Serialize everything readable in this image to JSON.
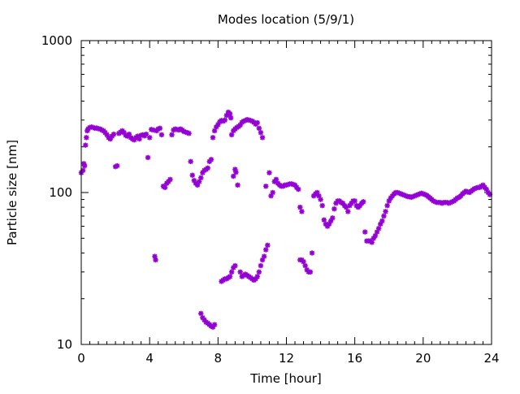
{
  "chart_data": {
    "type": "scatter",
    "title": "Modes location (5/9/1)",
    "xlabel": "Time [hour]",
    "ylabel": "Particle size [nm]",
    "xlim": [
      0,
      24
    ],
    "ylim": [
      10,
      1000
    ],
    "y_scale": "log",
    "x_ticks": [
      0,
      4,
      8,
      12,
      16,
      20,
      24
    ],
    "x_tick_labels": [
      "0",
      "4",
      "8",
      "12",
      "16",
      "20",
      "24"
    ],
    "y_ticks": [
      10,
      100,
      1000
    ],
    "y_tick_labels": [
      "10",
      "100",
      "1000"
    ],
    "grid": false,
    "legend": "none",
    "marker_color": "#9400d3",
    "series": [
      {
        "points": [
          [
            0.0,
            135
          ],
          [
            0.1,
            140
          ],
          [
            0.15,
            155
          ],
          [
            0.2,
            150
          ],
          [
            0.25,
            205
          ],
          [
            0.3,
            230
          ],
          [
            0.35,
            255
          ],
          [
            0.4,
            262
          ],
          [
            0.5,
            268
          ],
          [
            0.6,
            270
          ],
          [
            0.7,
            268
          ],
          [
            0.8,
            265
          ],
          [
            0.9,
            266
          ],
          [
            1.0,
            263
          ],
          [
            1.1,
            262
          ],
          [
            1.2,
            258
          ],
          [
            1.3,
            255
          ],
          [
            1.4,
            248
          ],
          [
            1.5,
            240
          ],
          [
            1.6,
            230
          ],
          [
            1.7,
            225
          ],
          [
            1.8,
            235
          ],
          [
            1.9,
            242
          ],
          [
            2.0,
            148
          ],
          [
            2.1,
            150
          ],
          [
            2.2,
            245
          ],
          [
            2.3,
            250
          ],
          [
            2.4,
            255
          ],
          [
            2.5,
            248
          ],
          [
            2.6,
            238
          ],
          [
            2.7,
            235
          ],
          [
            2.8,
            242
          ],
          [
            2.9,
            230
          ],
          [
            3.0,
            225
          ],
          [
            3.1,
            222
          ],
          [
            3.2,
            230
          ],
          [
            3.3,
            235
          ],
          [
            3.4,
            225
          ],
          [
            3.5,
            238
          ],
          [
            3.6,
            240
          ],
          [
            3.7,
            236
          ],
          [
            3.8,
            242
          ],
          [
            3.9,
            170
          ],
          [
            4.0,
            230
          ],
          [
            4.1,
            260
          ],
          [
            4.2,
            258
          ],
          [
            4.3,
            38
          ],
          [
            4.35,
            36
          ],
          [
            4.4,
            255
          ],
          [
            4.5,
            262
          ],
          [
            4.6,
            265
          ],
          [
            4.7,
            240
          ],
          [
            4.8,
            110
          ],
          [
            4.9,
            108
          ],
          [
            5.0,
            115
          ],
          [
            5.1,
            118
          ],
          [
            5.2,
            122
          ],
          [
            5.3,
            240
          ],
          [
            5.4,
            258
          ],
          [
            5.5,
            262
          ],
          [
            5.6,
            260
          ],
          [
            5.7,
            258
          ],
          [
            5.8,
            262
          ],
          [
            5.9,
            258
          ],
          [
            6.0,
            252
          ],
          [
            6.1,
            250
          ],
          [
            6.2,
            248
          ],
          [
            6.3,
            245
          ],
          [
            6.4,
            160
          ],
          [
            6.5,
            130
          ],
          [
            6.6,
            120
          ],
          [
            6.7,
            115
          ],
          [
            6.8,
            112
          ],
          [
            6.9,
            118
          ],
          [
            7.0,
            125
          ],
          [
            7.1,
            135
          ],
          [
            7.2,
            140
          ],
          [
            7.3,
            142
          ],
          [
            7.4,
            145
          ],
          [
            7.5,
            160
          ],
          [
            7.6,
            165
          ],
          [
            7.0,
            16
          ],
          [
            7.1,
            15
          ],
          [
            7.2,
            14.5
          ],
          [
            7.3,
            14
          ],
          [
            7.4,
            13.8
          ],
          [
            7.5,
            13.5
          ],
          [
            7.6,
            13.2
          ],
          [
            7.7,
            13
          ],
          [
            7.8,
            13.5
          ],
          [
            7.7,
            230
          ],
          [
            7.8,
            255
          ],
          [
            7.9,
            270
          ],
          [
            8.0,
            280
          ],
          [
            8.1,
            292
          ],
          [
            8.2,
            298
          ],
          [
            8.3,
            295
          ],
          [
            8.4,
            300
          ],
          [
            8.5,
            322
          ],
          [
            8.6,
            338
          ],
          [
            8.7,
            330
          ],
          [
            8.75,
            310
          ],
          [
            8.8,
            240
          ],
          [
            8.9,
            255
          ],
          [
            9.0,
            262
          ],
          [
            9.1,
            268
          ],
          [
            9.2,
            272
          ],
          [
            9.3,
            278
          ],
          [
            9.4,
            290
          ],
          [
            9.5,
            295
          ],
          [
            9.6,
            298
          ],
          [
            9.7,
            302
          ],
          [
            9.8,
            300
          ],
          [
            9.9,
            298
          ],
          [
            10.0,
            295
          ],
          [
            10.1,
            290
          ],
          [
            10.2,
            282
          ],
          [
            10.3,
            288
          ],
          [
            10.4,
            265
          ],
          [
            10.5,
            248
          ],
          [
            10.6,
            230
          ],
          [
            8.9,
            128
          ],
          [
            9.0,
            142
          ],
          [
            9.05,
            136
          ],
          [
            9.15,
            112
          ],
          [
            8.2,
            26
          ],
          [
            8.3,
            26.5
          ],
          [
            8.4,
            27
          ],
          [
            8.5,
            27
          ],
          [
            8.6,
            27.5
          ],
          [
            8.7,
            28
          ],
          [
            8.8,
            30
          ],
          [
            8.9,
            32
          ],
          [
            9.0,
            33
          ],
          [
            9.3,
            30
          ],
          [
            9.4,
            28
          ],
          [
            9.5,
            28.5
          ],
          [
            9.6,
            29
          ],
          [
            9.7,
            28.5
          ],
          [
            9.8,
            28
          ],
          [
            9.9,
            27.5
          ],
          [
            10.0,
            27
          ],
          [
            10.1,
            26.5
          ],
          [
            10.2,
            27
          ],
          [
            10.3,
            28
          ],
          [
            10.4,
            30
          ],
          [
            10.5,
            33
          ],
          [
            10.6,
            36
          ],
          [
            10.7,
            38
          ],
          [
            10.8,
            42
          ],
          [
            10.9,
            45
          ],
          [
            10.8,
            110
          ],
          [
            11.0,
            135
          ],
          [
            11.1,
            95
          ],
          [
            11.2,
            100
          ],
          [
            11.3,
            118
          ],
          [
            11.4,
            122
          ],
          [
            11.5,
            115
          ],
          [
            11.6,
            112
          ],
          [
            11.7,
            110
          ],
          [
            11.8,
            110
          ],
          [
            11.9,
            112
          ],
          [
            12.0,
            112
          ],
          [
            12.1,
            113
          ],
          [
            12.2,
            114
          ],
          [
            12.3,
            114
          ],
          [
            12.4,
            113
          ],
          [
            12.5,
            112
          ],
          [
            12.6,
            108
          ],
          [
            12.7,
            105
          ],
          [
            12.8,
            80
          ],
          [
            12.9,
            75
          ],
          [
            12.8,
            36
          ],
          [
            12.9,
            36
          ],
          [
            13.0,
            35
          ],
          [
            13.1,
            33
          ],
          [
            13.2,
            31
          ],
          [
            13.3,
            30
          ],
          [
            13.4,
            30
          ],
          [
            13.5,
            40
          ],
          [
            13.6,
            95
          ],
          [
            13.7,
            98
          ],
          [
            13.8,
            100
          ],
          [
            13.9,
            95
          ],
          [
            14.0,
            90
          ],
          [
            14.1,
            82
          ],
          [
            14.2,
            66
          ],
          [
            14.3,
            62
          ],
          [
            14.4,
            60
          ],
          [
            14.5,
            62
          ],
          [
            14.6,
            65
          ],
          [
            14.7,
            68
          ],
          [
            14.8,
            78
          ],
          [
            14.9,
            85
          ],
          [
            15.0,
            88
          ],
          [
            15.1,
            88
          ],
          [
            15.2,
            86
          ],
          [
            15.3,
            85
          ],
          [
            15.4,
            82
          ],
          [
            15.5,
            80
          ],
          [
            15.6,
            75
          ],
          [
            15.7,
            82
          ],
          [
            15.8,
            85
          ],
          [
            15.9,
            88
          ],
          [
            16.0,
            88
          ],
          [
            16.1,
            82
          ],
          [
            16.2,
            80
          ],
          [
            16.3,
            82
          ],
          [
            16.4,
            85
          ],
          [
            16.5,
            87
          ],
          [
            16.6,
            55
          ],
          [
            16.7,
            48
          ],
          [
            16.8,
            48
          ],
          [
            16.9,
            48
          ],
          [
            17.0,
            47
          ],
          [
            17.1,
            50
          ],
          [
            17.2,
            52
          ],
          [
            17.3,
            55
          ],
          [
            17.4,
            58
          ],
          [
            17.5,
            62
          ],
          [
            17.6,
            65
          ],
          [
            17.7,
            70
          ],
          [
            17.8,
            75
          ],
          [
            17.9,
            82
          ],
          [
            18.0,
            88
          ],
          [
            18.1,
            92
          ],
          [
            18.2,
            95
          ],
          [
            18.3,
            98
          ],
          [
            18.4,
            100
          ],
          [
            18.5,
            100
          ],
          [
            18.6,
            99
          ],
          [
            18.7,
            98
          ],
          [
            18.8,
            97
          ],
          [
            18.9,
            96
          ],
          [
            19.0,
            95
          ],
          [
            19.1,
            94
          ],
          [
            19.2,
            94
          ],
          [
            19.3,
            93
          ],
          [
            19.4,
            94
          ],
          [
            19.5,
            95
          ],
          [
            19.6,
            96
          ],
          [
            19.7,
            97
          ],
          [
            19.8,
            98
          ],
          [
            19.9,
            99
          ],
          [
            20.0,
            98
          ],
          [
            20.1,
            97
          ],
          [
            20.2,
            96
          ],
          [
            20.3,
            94
          ],
          [
            20.4,
            92
          ],
          [
            20.5,
            90
          ],
          [
            20.6,
            88
          ],
          [
            20.7,
            87
          ],
          [
            20.8,
            86
          ],
          [
            20.9,
            86
          ],
          [
            21.0,
            86
          ],
          [
            21.1,
            85
          ],
          [
            21.2,
            86
          ],
          [
            21.3,
            86
          ],
          [
            21.4,
            86
          ],
          [
            21.5,
            85
          ],
          [
            21.6,
            86
          ],
          [
            21.7,
            87
          ],
          [
            21.8,
            88
          ],
          [
            21.9,
            90
          ],
          [
            22.0,
            92
          ],
          [
            22.1,
            93
          ],
          [
            22.2,
            95
          ],
          [
            22.3,
            98
          ],
          [
            22.4,
            100
          ],
          [
            22.5,
            102
          ],
          [
            22.6,
            101
          ],
          [
            22.7,
            100
          ],
          [
            22.8,
            102
          ],
          [
            22.9,
            104
          ],
          [
            23.0,
            106
          ],
          [
            23.1,
            107
          ],
          [
            23.2,
            108
          ],
          [
            23.3,
            108
          ],
          [
            23.4,
            110
          ],
          [
            23.5,
            112
          ],
          [
            23.6,
            108
          ],
          [
            23.7,
            105
          ],
          [
            23.8,
            100
          ],
          [
            23.9,
            97
          ]
        ]
      }
    ]
  }
}
